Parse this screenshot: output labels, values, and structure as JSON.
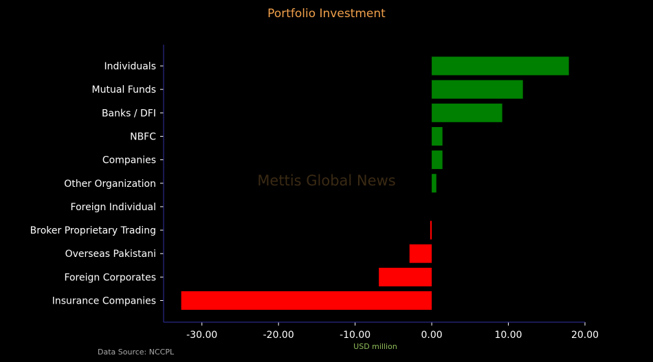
{
  "chart_data": {
    "type": "bar",
    "orientation": "horizontal",
    "title": "Portfolio Investment",
    "xlabel": "USD million",
    "source": "Data Source: NCCPL",
    "watermark": "Mettis Global News",
    "categories": [
      "Individuals",
      "Mutual Funds",
      "Banks / DFI",
      "NBFC",
      "Companies",
      "Other Organization",
      "Foreign Individual",
      "Broker Proprietary Trading",
      "Overseas Pakistani",
      "Foreign Corporates",
      "Insurance Companies"
    ],
    "values": [
      17.9,
      11.9,
      9.2,
      1.4,
      1.4,
      0.6,
      0.0,
      -0.2,
      -2.9,
      -6.9,
      -32.7
    ],
    "xlim": [
      -35,
      20
    ],
    "xticks": [
      -30,
      -20,
      -10,
      0,
      10,
      20
    ],
    "xtick_labels": [
      "-30.00",
      "-20.00",
      "-10.00",
      "0.00",
      "10.00",
      "20.00"
    ],
    "grid": false,
    "colors": {
      "positive": "#008000",
      "negative": "#ff0000",
      "title": "#f0a04b",
      "xlabel": "#8fbc5a",
      "axis": "#2a2a8a",
      "tick_text": "#ffffff",
      "source": "#aaaaaa",
      "watermark": "#3a2a14"
    }
  }
}
